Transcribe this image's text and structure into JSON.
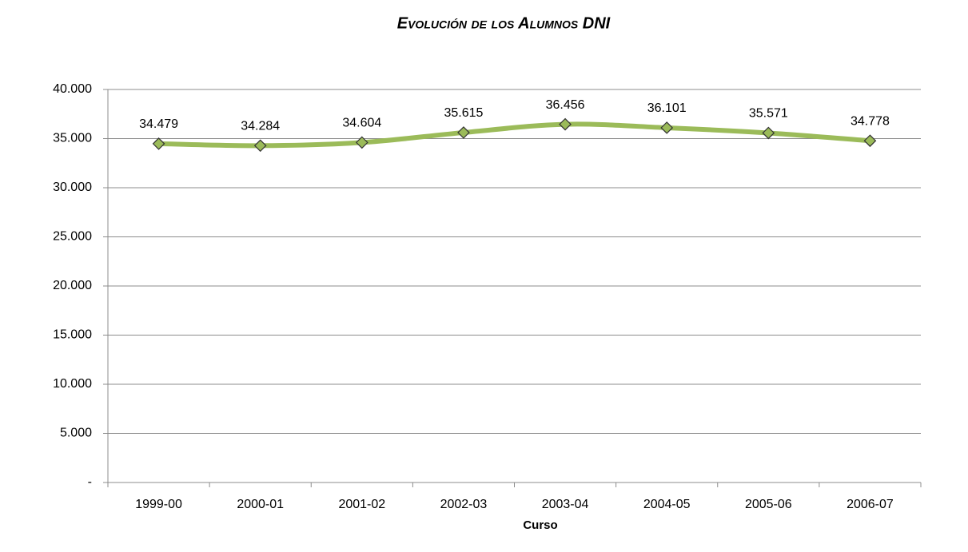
{
  "chart_data": {
    "type": "line",
    "title": "Evolución de los Alumnos DNI",
    "x_label": "Curso",
    "categories": [
      "1999-00",
      "2000-01",
      "2001-02",
      "2002-03",
      "2003-04",
      "2004-05",
      "2005-06",
      "2006-07"
    ],
    "series": [
      {
        "name": "Alumnos DNI",
        "color": "#9bbb59",
        "values": [
          34479,
          34284,
          34604,
          35615,
          36456,
          36101,
          35571,
          34778
        ],
        "value_labels": [
          "34.479",
          "34.284",
          "34.604",
          "35.615",
          "36.456",
          "36.101",
          "35.571",
          "34.778"
        ]
      }
    ],
    "ylim": [
      0,
      40000
    ],
    "yticks": [
      {
        "value": 0,
        "label": "-"
      },
      {
        "value": 5000,
        "label": "5.000"
      },
      {
        "value": 10000,
        "label": "10.000"
      },
      {
        "value": 15000,
        "label": "15.000"
      },
      {
        "value": 20000,
        "label": "20.000"
      },
      {
        "value": 25000,
        "label": "25.000"
      },
      {
        "value": 30000,
        "label": "30.000"
      },
      {
        "value": 35000,
        "label": "35.000"
      },
      {
        "value": 40000,
        "label": "40.000"
      }
    ],
    "grid": true,
    "smooth": true
  }
}
